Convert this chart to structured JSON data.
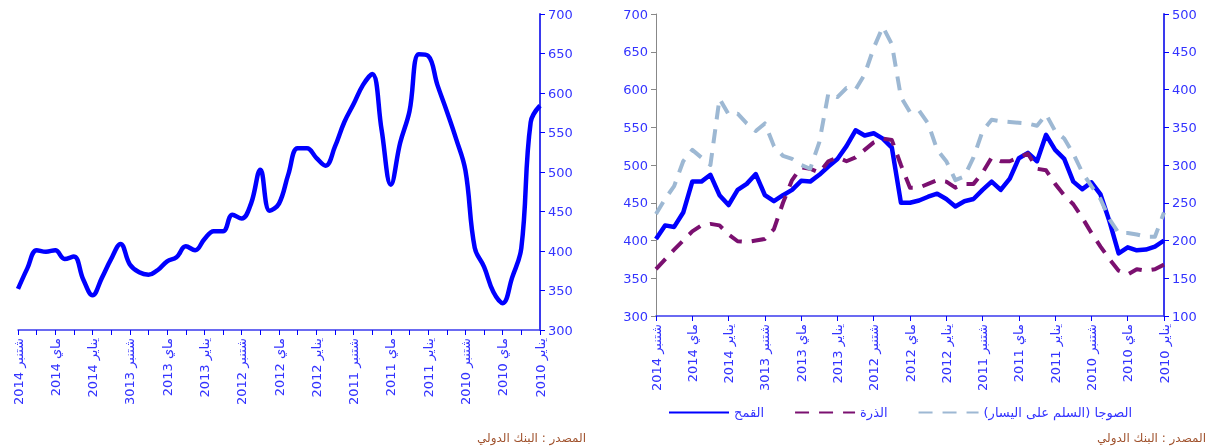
{
  "chart_data": [
    {
      "type": "line",
      "categories": [
        "شتنبر 2014",
        null,
        null,
        null,
        "ماي 2014",
        null,
        null,
        null,
        "يناير 2014",
        null,
        null,
        null,
        "شتنبر 3013",
        null,
        null,
        null,
        "ماي 2013",
        null,
        null,
        null,
        "يناير 2013",
        null,
        null,
        null,
        "شتنبر 2012",
        null,
        null,
        null,
        "ماي 2012",
        null,
        null,
        null,
        "يناير 2012",
        null,
        null,
        null,
        "شتنبر 2011",
        null,
        null,
        null,
        "ماي 2011",
        null,
        null,
        null,
        "يناير 2011",
        null,
        null,
        null,
        "شتنبر 2010",
        null,
        null,
        null,
        "ماي 2010",
        null,
        null,
        null,
        "يناير 2010"
      ],
      "values": [
        352,
        378,
        401,
        399,
        401,
        390,
        393,
        364,
        344,
        366,
        390,
        409,
        383,
        373,
        370,
        376,
        387,
        392,
        406,
        401,
        415,
        425,
        425,
        446,
        441,
        460,
        503,
        451,
        460,
        497,
        530,
        530,
        518,
        508,
        532,
        563,
        586,
        610,
        624,
        554,
        484,
        537,
        577,
        649,
        647,
        610,
        577,
        542,
        502,
        404,
        380,
        348,
        334,
        366,
        404,
        563,
        584
      ],
      "color": "#0000ff",
      "line_style": "solid",
      "marker": "none",
      "ylim": [
        300,
        700
      ],
      "yticks": [
        300,
        350,
        400,
        450,
        500,
        550,
        600,
        650,
        700
      ],
      "legend": false,
      "annotations": [
        "المصدر : البنك الدولي"
      ]
    },
    {
      "type": "line",
      "categories": [
        "شتنبر 2014",
        null,
        null,
        null,
        "ماي 2014",
        null,
        null,
        null,
        "يناير 2014",
        null,
        null,
        null,
        "شتنبر 3013",
        null,
        null,
        null,
        "ماي 2013",
        null,
        null,
        null,
        "يناير 2013",
        null,
        null,
        null,
        "شتنبر 2012",
        null,
        null,
        null,
        "ماي 2012",
        null,
        null,
        null,
        "يناير 2012",
        null,
        null,
        null,
        "شتنبر 2011",
        null,
        null,
        null,
        "ماي 2011",
        null,
        null,
        null,
        "يناير 2011",
        null,
        null,
        null,
        "شتنبر 2010",
        null,
        null,
        null,
        "ماي 2010",
        null,
        null,
        null,
        "يناير 2010"
      ],
      "series": [
        {
          "name": "القمح",
          "color": "#0000ff",
          "line_style": "solid",
          "axis": "y2",
          "values": [
            202,
            220,
            218,
            237,
            278,
            278,
            287,
            260,
            247,
            267,
            275,
            288,
            260,
            252,
            260,
            267,
            279,
            278,
            287,
            298,
            308,
            325,
            346,
            339,
            342,
            335,
            323,
            250,
            250,
            253,
            258,
            262,
            255,
            245,
            252,
            255,
            267,
            278,
            267,
            282,
            309,
            316,
            305,
            340,
            320,
            308,
            278,
            268,
            277,
            261,
            225,
            183,
            191,
            187,
            188,
            192,
            200
          ]
        },
        {
          "name": "الذرة",
          "color": "#7b1070",
          "line_style": "dashed",
          "axis": "y2",
          "values": [
            162,
            175,
            188,
            200,
            212,
            220,
            222,
            220,
            208,
            199,
            198,
            200,
            202,
            215,
            250,
            280,
            297,
            295,
            290,
            305,
            310,
            305,
            310,
            320,
            330,
            335,
            333,
            300,
            270,
            270,
            275,
            280,
            278,
            270,
            275,
            275,
            290,
            310,
            305,
            305,
            310,
            315,
            295,
            293,
            275,
            260,
            248,
            230,
            210,
            192,
            175,
            160,
            155,
            162,
            160,
            162,
            168
          ]
        },
        {
          "name": "الصوجا (السلم على اليسار)",
          "color": "#9db8d3",
          "line_style": "dashed",
          "values": [
            435,
            455,
            472,
            505,
            520,
            510,
            500,
            588,
            567,
            568,
            555,
            545,
            555,
            525,
            512,
            508,
            500,
            495,
            530,
            595,
            590,
            602,
            600,
            620,
            655,
            683,
            660,
            590,
            570,
            572,
            555,
            520,
            505,
            480,
            485,
            510,
            545,
            560,
            558,
            557,
            556,
            555,
            552,
            567,
            545,
            535,
            515,
            490,
            472,
            455,
            428,
            410,
            410,
            408,
            405,
            405,
            437
          ]
        }
      ],
      "marker": "none",
      "ylim": [
        300,
        700
      ],
      "yticks": [
        300,
        350,
        400,
        450,
        500,
        550,
        600,
        650,
        700
      ],
      "y2lim": [
        100,
        500
      ],
      "y2ticks": [
        100,
        150,
        200,
        250,
        300,
        350,
        400,
        450,
        500
      ],
      "legend": "bottom",
      "annotations": [
        "المصدر : البنك الدولي"
      ]
    }
  ]
}
